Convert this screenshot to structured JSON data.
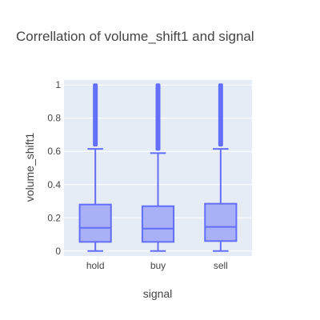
{
  "chart_data": {
    "type": "box",
    "title": "Correllation of volume_shift1 and signal",
    "xlabel": "signal",
    "ylabel": "volume_shift1",
    "categories": [
      "hold",
      "buy",
      "sell"
    ],
    "ylim": [
      -0.03,
      1.03
    ],
    "yticks": [
      0,
      0.2,
      0.4,
      0.6,
      0.8,
      1
    ],
    "ytick_labels": [
      "0",
      "0.2",
      "0.4",
      "0.6",
      "0.8",
      "1"
    ],
    "grid": true,
    "legend": "none",
    "colors": {
      "box_fill": "#aab0f5",
      "box_line": "#636efa",
      "plot_bg": "#e5ecf6"
    },
    "boxes": [
      {
        "category": "hold",
        "min": 0.0,
        "q1": 0.055,
        "median": 0.14,
        "q3": 0.28,
        "upper_fence": 0.615,
        "outlier_max": 1.0
      },
      {
        "category": "buy",
        "min": 0.0,
        "q1": 0.055,
        "median": 0.135,
        "q3": 0.27,
        "upper_fence": 0.59,
        "outlier_max": 1.0
      },
      {
        "category": "sell",
        "min": 0.0,
        "q1": 0.06,
        "median": 0.145,
        "q3": 0.285,
        "upper_fence": 0.615,
        "outlier_max": 1.0
      }
    ]
  }
}
